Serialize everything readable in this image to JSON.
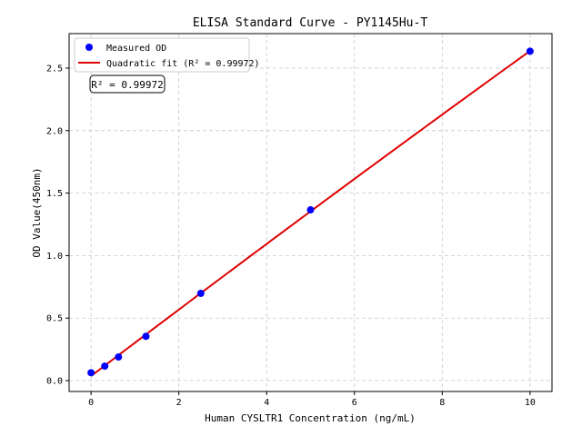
{
  "chart_data": {
    "type": "scatter",
    "title": "ELISA Standard Curve - PY1145Hu-T",
    "xlabel": "Human CYSLTR1 Concentration (ng/mL)",
    "ylabel": "OD Value(450nm)",
    "xlim": [
      -0.5,
      10.5
    ],
    "ylim": [
      -0.087,
      2.776
    ],
    "xticks": [
      0,
      2,
      4,
      6,
      8,
      10
    ],
    "yticks": [
      0.0,
      0.5,
      1.0,
      1.5,
      2.0,
      2.5
    ],
    "ytick_labels": [
      "0.0",
      "0.5",
      "1.0",
      "1.5",
      "2.0",
      "2.5"
    ],
    "grid": true,
    "legend_position": "top-left",
    "series": [
      {
        "name": "Measured OD",
        "kind": "points",
        "color": "#0000ff",
        "x": [
          0,
          0.3125,
          0.625,
          1.25,
          2.5,
          5,
          10
        ],
        "y": [
          0.063,
          0.116,
          0.189,
          0.354,
          0.698,
          1.366,
          2.635
        ]
      },
      {
        "name": "Quadratic fit (R² = 0.99972)",
        "kind": "quadratic-fit",
        "color": "#e00000"
      }
    ],
    "annotation": "R² = 0.99972"
  }
}
